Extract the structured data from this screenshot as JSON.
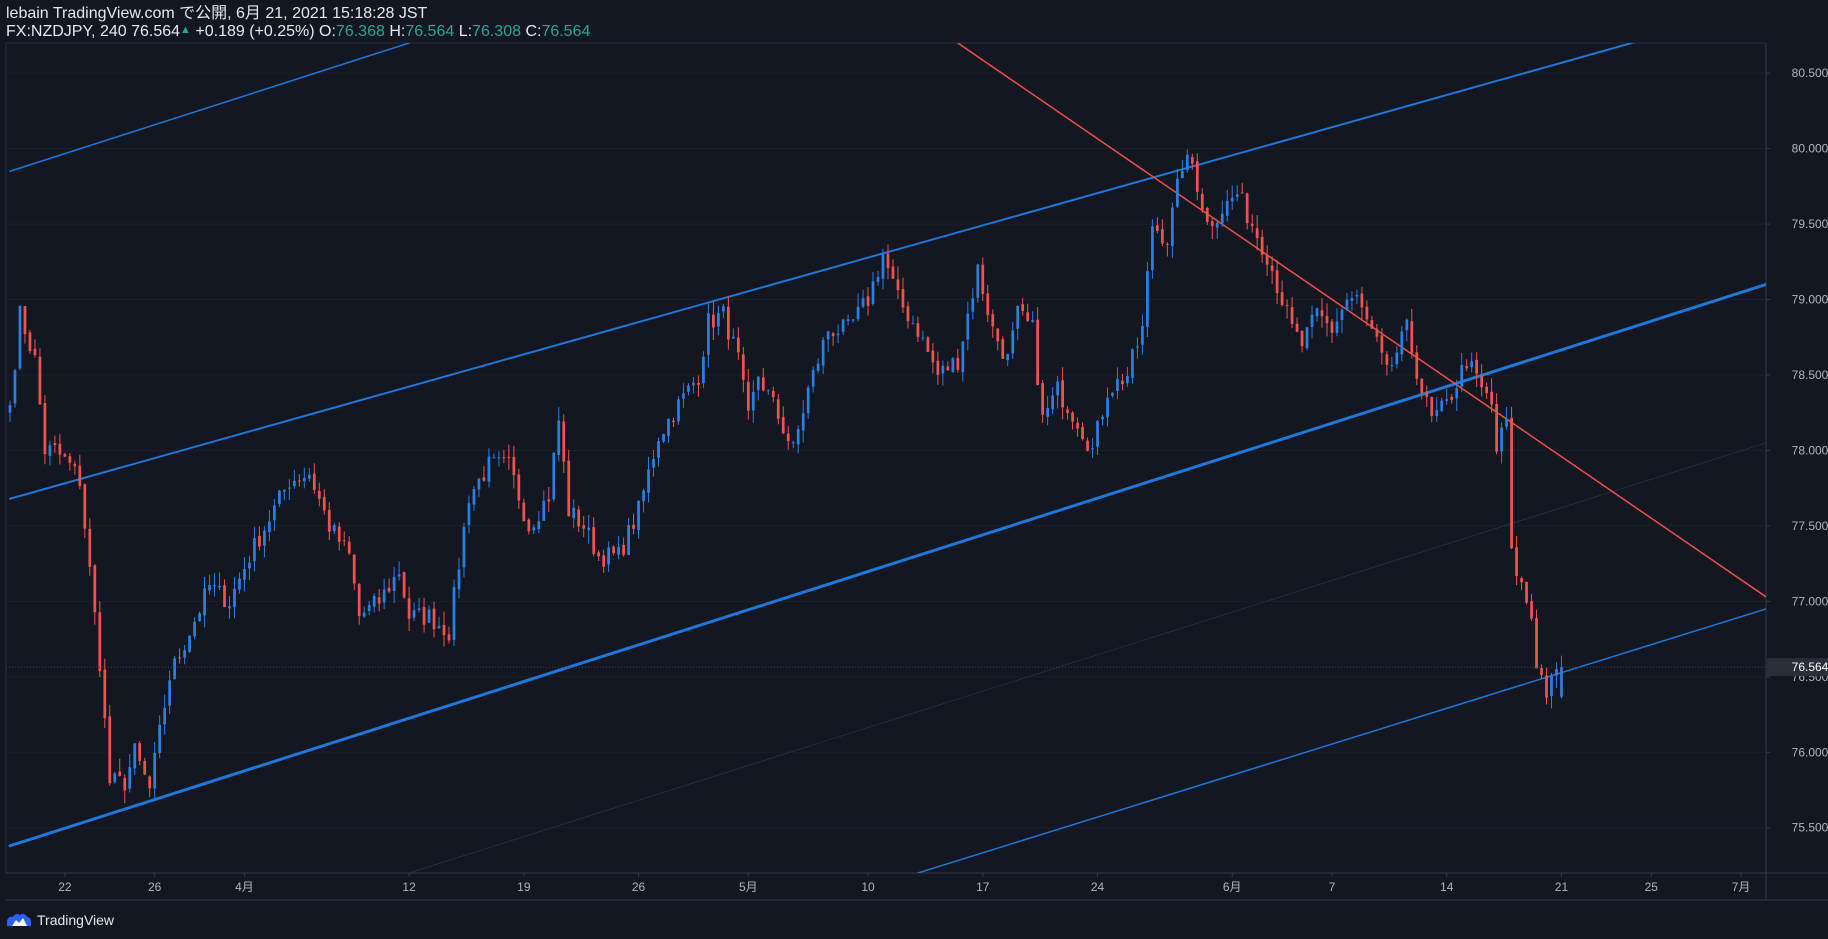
{
  "header": {
    "publish_line": "lebain TradingView.com で公開, 6月 21, 2021 15:18:28 JST",
    "symbol": "FX:NZDJPY, 240",
    "last": "76.564",
    "change": "+0.189 (+0.25%)",
    "open_label": "O:",
    "open": "76.368",
    "high_label": "H:",
    "high": "76.564",
    "low_label": "L:",
    "low": "76.308",
    "close_label": "C:",
    "close": "76.564"
  },
  "footer": {
    "brand": "TradingView",
    "logo_icon": "tradingview-logo-icon"
  },
  "colors": {
    "background": "#131722",
    "up": "#2a7fe0",
    "down": "#ef5350",
    "channel": "#1e78d7",
    "trendline": "#f0504a",
    "axis_text": "#b2b5be",
    "price_label_bg": "#2a2e39"
  },
  "chart_data": {
    "type": "candlestick",
    "symbol": "FX:NZDJPY",
    "timeframe": "240",
    "ylim": [
      75.2,
      80.7
    ],
    "yticks": [
      75.5,
      76.0,
      76.5,
      77.0,
      77.5,
      78.0,
      78.5,
      79.0,
      79.5,
      80.0,
      80.5
    ],
    "ytick_labels": [
      "75.500",
      "76.000",
      "76.500",
      "77.000",
      "77.500",
      "78.000",
      "78.500",
      "79.000",
      "79.500",
      "80.000",
      "80.500"
    ],
    "xticks": [
      {
        "label": "22",
        "i": 11
      },
      {
        "label": "26",
        "i": 29
      },
      {
        "label": "4月",
        "i": 47
      },
      {
        "label": "12",
        "i": 80
      },
      {
        "label": "19",
        "i": 103
      },
      {
        "label": "26",
        "i": 126
      },
      {
        "label": "5月",
        "i": 148
      },
      {
        "label": "10",
        "i": 172
      },
      {
        "label": "17",
        "i": 195
      },
      {
        "label": "24",
        "i": 218
      },
      {
        "label": "6月",
        "i": 245
      },
      {
        "label": "7",
        "i": 265
      },
      {
        "label": "14",
        "i": 288
      },
      {
        "label": "21",
        "i": 311
      },
      {
        "label": "25",
        "i": 329
      },
      {
        "label": "7月",
        "i": 347
      }
    ],
    "current_price": 76.564,
    "current_price_label": "76.564",
    "close_waypoints": [
      [
        0,
        78.3
      ],
      [
        2,
        78.9
      ],
      [
        5,
        78.6
      ],
      [
        7,
        78.0
      ],
      [
        9,
        78.0
      ],
      [
        12,
        77.9
      ],
      [
        14,
        77.8
      ],
      [
        16,
        77.2
      ],
      [
        18,
        76.6
      ],
      [
        20,
        75.8
      ],
      [
        23,
        75.8
      ],
      [
        25,
        76.0
      ],
      [
        28,
        75.75
      ],
      [
        32,
        76.5
      ],
      [
        36,
        76.8
      ],
      [
        40,
        77.1
      ],
      [
        44,
        77.0
      ],
      [
        48,
        77.3
      ],
      [
        52,
        77.55
      ],
      [
        56,
        77.8
      ],
      [
        60,
        77.85
      ],
      [
        64,
        77.5
      ],
      [
        68,
        77.3
      ],
      [
        70,
        76.9
      ],
      [
        74,
        77.0
      ],
      [
        78,
        77.2
      ],
      [
        80,
        76.9
      ],
      [
        84,
        76.9
      ],
      [
        88,
        76.8
      ],
      [
        92,
        77.7
      ],
      [
        96,
        77.9
      ],
      [
        100,
        77.9
      ],
      [
        104,
        77.5
      ],
      [
        108,
        77.7
      ],
      [
        110,
        78.2
      ],
      [
        112,
        77.6
      ],
      [
        115,
        77.5
      ],
      [
        118,
        77.3
      ],
      [
        122,
        77.3
      ],
      [
        126,
        77.6
      ],
      [
        130,
        78.1
      ],
      [
        134,
        78.3
      ],
      [
        138,
        78.5
      ],
      [
        140,
        78.85
      ],
      [
        143,
        78.9
      ],
      [
        146,
        78.6
      ],
      [
        148,
        78.2
      ],
      [
        150,
        78.5
      ],
      [
        153,
        78.3
      ],
      [
        157,
        78.0
      ],
      [
        160,
        78.4
      ],
      [
        164,
        78.8
      ],
      [
        168,
        78.8
      ],
      [
        172,
        79.0
      ],
      [
        175,
        79.3
      ],
      [
        178,
        79.0
      ],
      [
        182,
        78.8
      ],
      [
        186,
        78.5
      ],
      [
        190,
        78.6
      ],
      [
        194,
        79.2
      ],
      [
        197,
        78.8
      ],
      [
        200,
        78.6
      ],
      [
        202,
        78.9
      ],
      [
        205,
        78.8
      ],
      [
        207,
        78.2
      ],
      [
        210,
        78.4
      ],
      [
        214,
        78.2
      ],
      [
        217,
        78.0
      ],
      [
        220,
        78.4
      ],
      [
        224,
        78.5
      ],
      [
        227,
        78.8
      ],
      [
        229,
        79.5
      ],
      [
        232,
        79.4
      ],
      [
        235,
        79.9
      ],
      [
        237,
        79.9
      ],
      [
        240,
        79.5
      ],
      [
        243,
        79.6
      ],
      [
        246,
        79.7
      ],
      [
        249,
        79.5
      ],
      [
        252,
        79.3
      ],
      [
        254,
        79.1
      ],
      [
        257,
        78.8
      ],
      [
        259,
        78.7
      ],
      [
        262,
        78.9
      ],
      [
        265,
        78.8
      ],
      [
        268,
        79.0
      ],
      [
        270,
        79.0
      ],
      [
        274,
        78.7
      ],
      [
        276,
        78.5
      ],
      [
        280,
        78.8
      ],
      [
        283,
        78.4
      ],
      [
        285,
        78.2
      ],
      [
        288,
        78.3
      ],
      [
        292,
        78.6
      ],
      [
        295,
        78.4
      ],
      [
        297,
        78.3
      ],
      [
        298,
        78.0
      ],
      [
        300,
        78.2
      ],
      [
        301,
        77.3
      ],
      [
        303,
        77.1
      ],
      [
        305,
        76.9
      ],
      [
        306,
        76.6
      ],
      [
        308,
        76.4
      ],
      [
        311,
        76.56
      ]
    ],
    "annotations": [
      {
        "type": "channel-line",
        "name": "upper",
        "from": [
          0,
          77.68
        ],
        "to": [
          352,
          80.95
        ],
        "width": 2
      },
      {
        "type": "channel-line",
        "name": "upper-outer",
        "from": [
          0,
          79.85
        ],
        "to": [
          80,
          80.7
        ],
        "width": 1.5
      },
      {
        "type": "channel-line",
        "name": "middle-support",
        "from": [
          0,
          75.38
        ],
        "to": [
          352,
          79.1
        ],
        "width": 3
      },
      {
        "type": "channel-line",
        "name": "lower",
        "from": [
          182,
          75.2
        ],
        "to": [
          352,
          76.95
        ],
        "width": 1.5
      },
      {
        "type": "channel-midline",
        "name": "faint-mid",
        "from": [
          80,
          75.2
        ],
        "to": [
          352,
          78.05
        ],
        "width": 0.7
      },
      {
        "type": "trendline",
        "name": "descending-resistance",
        "from": [
          190,
          80.7
        ],
        "to": [
          352,
          77.03
        ],
        "width": 1.5
      }
    ]
  }
}
